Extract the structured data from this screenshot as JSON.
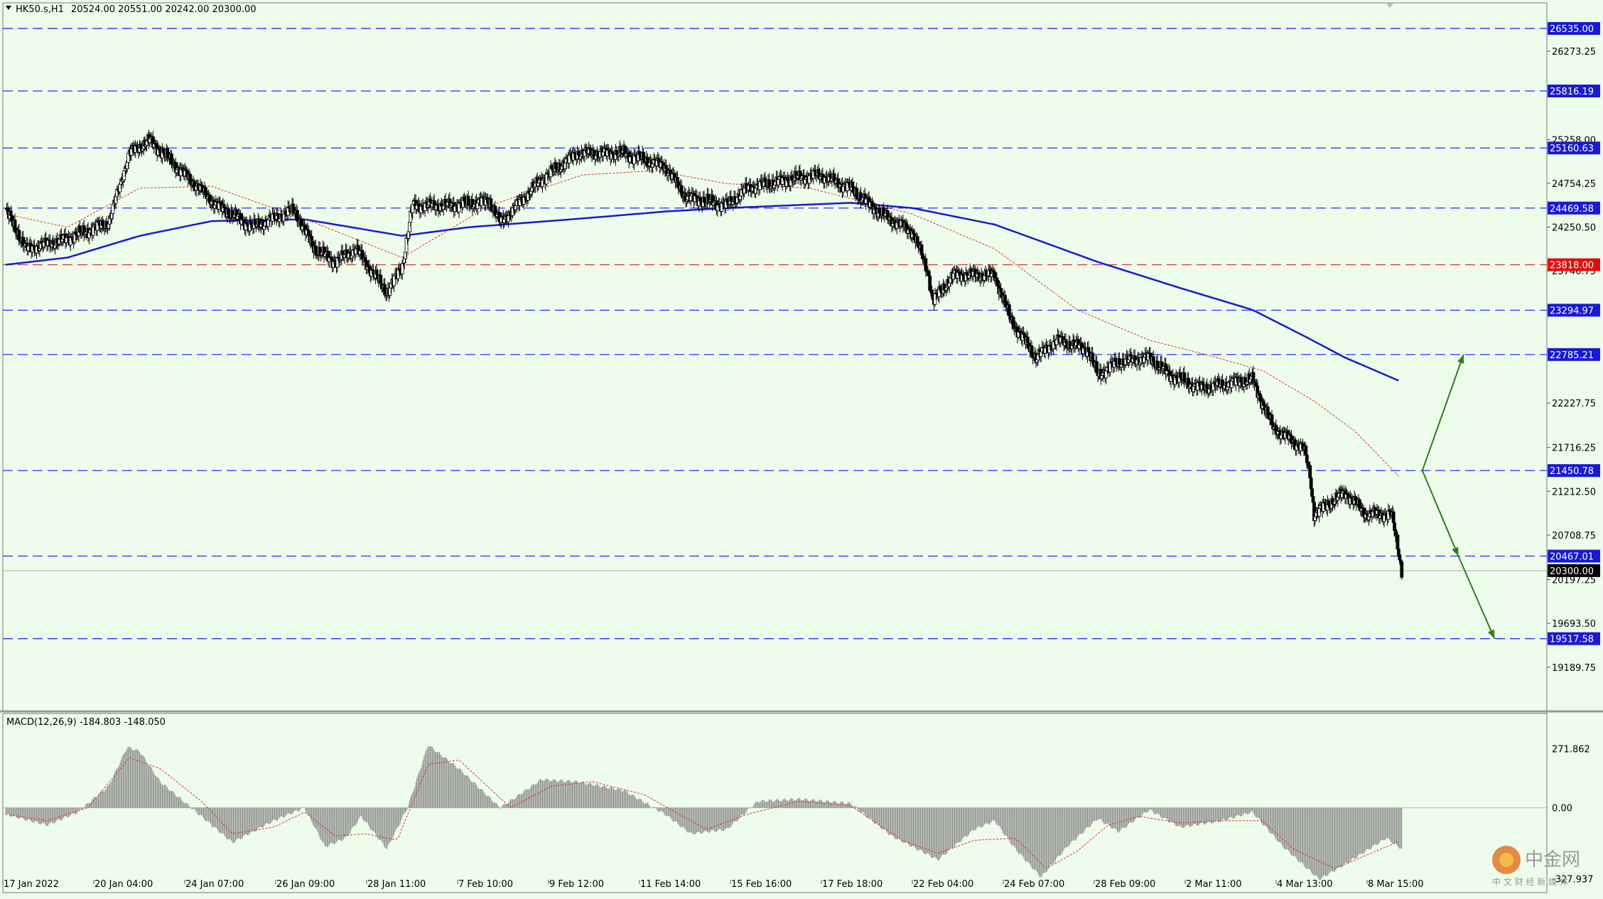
{
  "header": {
    "symbol": "HK50.s,H1",
    "ohlc": "20524.00 20551.00 20242.00 20300.00"
  },
  "colors": {
    "background": "#eefcec",
    "candle": "#000000",
    "level_line": "#2b2bff",
    "pivot_line": "#e03030",
    "ma_slow": "#1a1ad0",
    "ma_fast": "#e03030",
    "arrow": "#2e7d1e",
    "macd_hist": "#888888",
    "macd_signal": "#e03030",
    "price_label_bg": "#1a1ad0",
    "current_label_bg": "#000000",
    "pivot_label_bg": "#e01010"
  },
  "chart_data": {
    "type": "candlestick",
    "instrument": "HK50.s",
    "timeframe": "H1",
    "ohlc_last": {
      "open": 20524.0,
      "high": 20551.0,
      "low": 20242.0,
      "close": 20300.0
    },
    "price_range": [
      19000,
      26650
    ],
    "price_ticks": [
      "26273.25",
      "25258.00",
      "24754.25",
      "24250.50",
      "23746.75",
      "22227.75",
      "21716.25",
      "21212.50",
      "20708.75",
      "20197.25",
      "19693.50",
      "19189.75"
    ],
    "x_labels": [
      "17 Jan 2022",
      "20 Jan 04:00",
      "24 Jan 07:00",
      "26 Jan 09:00",
      "28 Jan 11:00",
      "7 Feb 10:00",
      "9 Feb 12:00",
      "11 Feb 14:00",
      "15 Feb 16:00",
      "17 Feb 18:00",
      "22 Feb 04:00",
      "24 Feb 07:00",
      "28 Feb 09:00",
      "2 Mar 11:00",
      "4 Mar 13:00",
      "8 Mar 15:00"
    ],
    "price_path": [
      [
        0,
        24450
      ],
      [
        20,
        24000
      ],
      [
        55,
        24100
      ],
      [
        100,
        24300
      ],
      [
        120,
        25100
      ],
      [
        140,
        25250
      ],
      [
        170,
        24900
      ],
      [
        205,
        24500
      ],
      [
        240,
        24250
      ],
      [
        280,
        24450
      ],
      [
        300,
        24000
      ],
      [
        320,
        23850
      ],
      [
        340,
        24000
      ],
      [
        370,
        23500
      ],
      [
        385,
        23800
      ],
      [
        395,
        24500
      ],
      [
        430,
        24500
      ],
      [
        470,
        24550
      ],
      [
        480,
        24300
      ],
      [
        520,
        24800
      ],
      [
        555,
        25100
      ],
      [
        600,
        25100
      ],
      [
        640,
        24950
      ],
      [
        660,
        24600
      ],
      [
        700,
        24500
      ],
      [
        720,
        24700
      ],
      [
        760,
        24800
      ],
      [
        790,
        24850
      ],
      [
        820,
        24700
      ],
      [
        850,
        24400
      ],
      [
        880,
        24200
      ],
      [
        895,
        23750
      ],
      [
        900,
        23400
      ],
      [
        920,
        23700
      ],
      [
        960,
        23700
      ],
      [
        975,
        23200
      ],
      [
        1000,
        22750
      ],
      [
        1020,
        22950
      ],
      [
        1050,
        22850
      ],
      [
        1060,
        22550
      ],
      [
        1080,
        22700
      ],
      [
        1110,
        22750
      ],
      [
        1130,
        22550
      ],
      [
        1160,
        22400
      ],
      [
        1210,
        22500
      ],
      [
        1230,
        21950
      ],
      [
        1260,
        21700
      ],
      [
        1266,
        21400
      ],
      [
        1270,
        20950
      ],
      [
        1300,
        21200
      ],
      [
        1320,
        20950
      ],
      [
        1345,
        20950
      ],
      [
        1352,
        20524
      ],
      [
        1355,
        20300
      ]
    ],
    "ma_slow_path": [
      [
        0,
        23818
      ],
      [
        60,
        23900
      ],
      [
        130,
        24150
      ],
      [
        200,
        24320
      ],
      [
        290,
        24340
      ],
      [
        385,
        24150
      ],
      [
        450,
        24250
      ],
      [
        560,
        24350
      ],
      [
        640,
        24430
      ],
      [
        700,
        24470
      ],
      [
        820,
        24530
      ],
      [
        880,
        24470
      ],
      [
        960,
        24280
      ],
      [
        1060,
        23850
      ],
      [
        1140,
        23550
      ],
      [
        1210,
        23300
      ],
      [
        1260,
        23000
      ],
      [
        1300,
        22750
      ],
      [
        1355,
        22470
      ]
    ],
    "ma_fast_path": [
      [
        0,
        24400
      ],
      [
        60,
        24250
      ],
      [
        130,
        24700
      ],
      [
        200,
        24720
      ],
      [
        300,
        24300
      ],
      [
        385,
        23900
      ],
      [
        470,
        24500
      ],
      [
        560,
        24850
      ],
      [
        630,
        24900
      ],
      [
        700,
        24750
      ],
      [
        780,
        24700
      ],
      [
        880,
        24400
      ],
      [
        960,
        24000
      ],
      [
        1040,
        23300
      ],
      [
        1110,
        22950
      ],
      [
        1160,
        22800
      ],
      [
        1220,
        22600
      ],
      [
        1270,
        22250
      ],
      [
        1310,
        21900
      ],
      [
        1355,
        21350
      ]
    ],
    "horizontal_levels": [
      {
        "price": 26535.0,
        "label": "26535.00",
        "style": "level"
      },
      {
        "price": 25816.19,
        "label": "25816.19",
        "style": "level"
      },
      {
        "price": 25160.63,
        "label": "25160.63",
        "style": "level"
      },
      {
        "price": 24469.58,
        "label": "24469.58",
        "style": "level"
      },
      {
        "price": 23818.0,
        "label": "23818.00",
        "style": "pivot"
      },
      {
        "price": 23294.97,
        "label": "23294.97",
        "style": "level"
      },
      {
        "price": 22785.21,
        "label": "22785.21",
        "style": "level"
      },
      {
        "price": 21450.78,
        "label": "21450.78",
        "style": "level"
      },
      {
        "price": 20467.01,
        "label": "20467.01",
        "style": "level"
      },
      {
        "price": 19517.58,
        "label": "19517.58",
        "style": "level"
      }
    ],
    "current_price": {
      "price": 20300.0,
      "label": "20300.00"
    },
    "arrows": [
      {
        "from": [
          1375,
          21450.78
        ],
        "to": [
          1415,
          22785.21
        ]
      },
      {
        "from": [
          1375,
          21450.78
        ],
        "to": [
          1410,
          20467.01
        ]
      },
      {
        "from": [
          1410,
          20467.01
        ],
        "to": [
          1445,
          19517.58
        ]
      }
    ],
    "macd": {
      "label": "MACD(12,26,9) -184.803 -148.050",
      "range": [
        -355,
        300
      ],
      "ticks": [
        "271.862",
        "0.00",
        "-327.937"
      ],
      "hist_path": [
        [
          0,
          -30
        ],
        [
          40,
          -80
        ],
        [
          70,
          -20
        ],
        [
          100,
          100
        ],
        [
          118,
          280
        ],
        [
          130,
          260
        ],
        [
          150,
          120
        ],
        [
          190,
          -40
        ],
        [
          220,
          -160
        ],
        [
          260,
          -60
        ],
        [
          290,
          0
        ],
        [
          310,
          -180
        ],
        [
          330,
          -140
        ],
        [
          345,
          -40
        ],
        [
          370,
          -190
        ],
        [
          390,
          0
        ],
        [
          410,
          290
        ],
        [
          440,
          180
        ],
        [
          480,
          0
        ],
        [
          520,
          130
        ],
        [
          555,
          120
        ],
        [
          600,
          80
        ],
        [
          640,
          -30
        ],
        [
          665,
          -120
        ],
        [
          700,
          -100
        ],
        [
          730,
          30
        ],
        [
          770,
          40
        ],
        [
          820,
          20
        ],
        [
          860,
          -130
        ],
        [
          905,
          -240
        ],
        [
          940,
          -100
        ],
        [
          960,
          -60
        ],
        [
          980,
          -190
        ],
        [
          1005,
          -320
        ],
        [
          1030,
          -180
        ],
        [
          1060,
          -50
        ],
        [
          1080,
          -110
        ],
        [
          1110,
          -10
        ],
        [
          1140,
          -90
        ],
        [
          1180,
          -60
        ],
        [
          1210,
          -20
        ],
        [
          1240,
          -180
        ],
        [
          1275,
          -330
        ],
        [
          1300,
          -260
        ],
        [
          1340,
          -140
        ],
        [
          1355,
          -190
        ]
      ],
      "signal_path": [
        [
          0,
          -30
        ],
        [
          40,
          -60
        ],
        [
          80,
          0
        ],
        [
          120,
          230
        ],
        [
          150,
          180
        ],
        [
          190,
          30
        ],
        [
          220,
          -120
        ],
        [
          260,
          -90
        ],
        [
          290,
          -20
        ],
        [
          320,
          -130
        ],
        [
          350,
          -120
        ],
        [
          380,
          -150
        ],
        [
          410,
          200
        ],
        [
          440,
          220
        ],
        [
          490,
          0
        ],
        [
          530,
          100
        ],
        [
          570,
          120
        ],
        [
          620,
          60
        ],
        [
          680,
          -100
        ],
        [
          720,
          -30
        ],
        [
          770,
          30
        ],
        [
          820,
          10
        ],
        [
          870,
          -150
        ],
        [
          905,
          -210
        ],
        [
          940,
          -150
        ],
        [
          980,
          -140
        ],
        [
          1010,
          -280
        ],
        [
          1040,
          -200
        ],
        [
          1070,
          -80
        ],
        [
          1100,
          -40
        ],
        [
          1140,
          -70
        ],
        [
          1180,
          -60
        ],
        [
          1220,
          -60
        ],
        [
          1250,
          -190
        ],
        [
          1290,
          -280
        ],
        [
          1320,
          -220
        ],
        [
          1355,
          -150
        ]
      ]
    }
  },
  "watermark": {
    "brand": "中金网",
    "sub": "中 文 财 经 新 媒 体"
  }
}
